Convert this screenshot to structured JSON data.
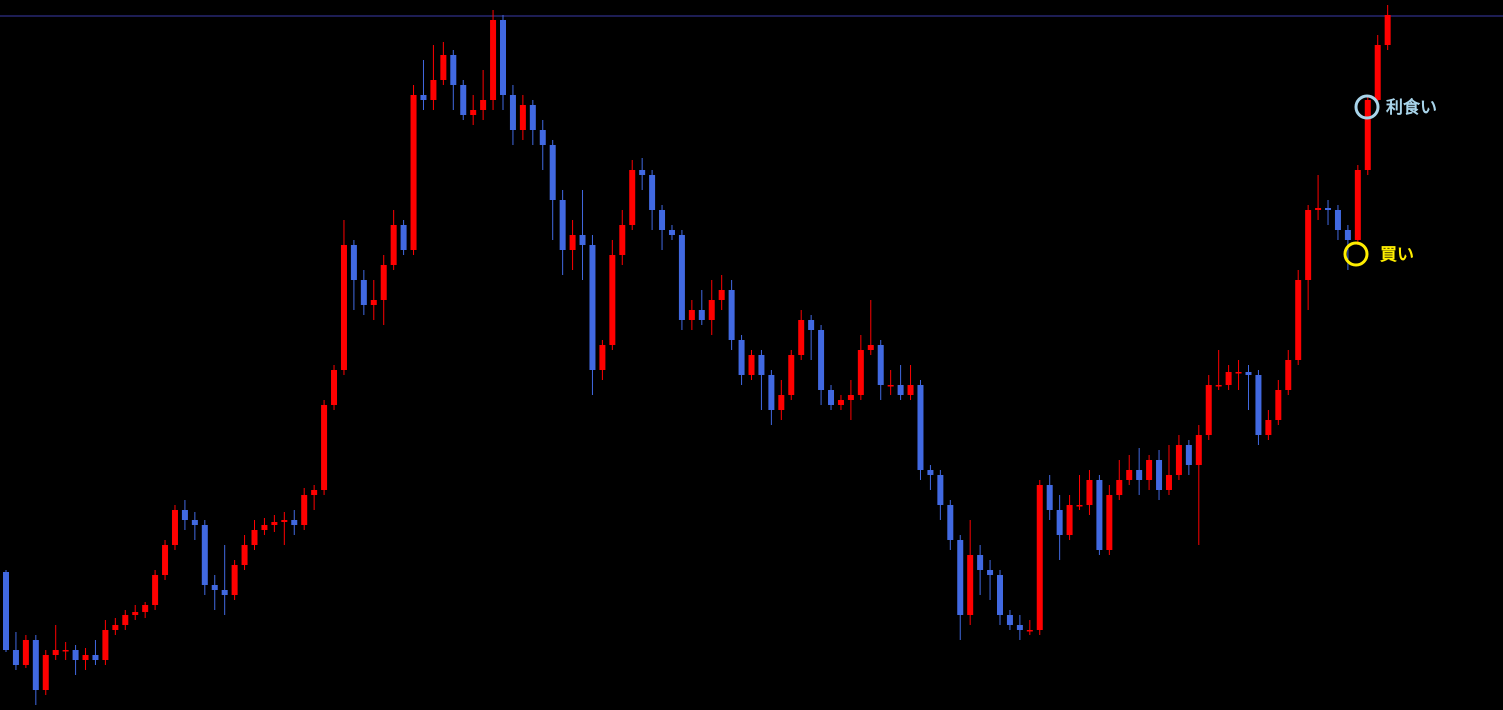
{
  "chart_data": {
    "type": "candlestick",
    "open": [
      138,
      60,
      45,
      70,
      20,
      55,
      60,
      60,
      50,
      55,
      50,
      80,
      85,
      95,
      98,
      105,
      135,
      165,
      200,
      190,
      185,
      125,
      120,
      115,
      145,
      165,
      180,
      185,
      188,
      190,
      185,
      215,
      220,
      305,
      340,
      465,
      430,
      405,
      410,
      445,
      485,
      460,
      615,
      610,
      630,
      655,
      625,
      595,
      600,
      610,
      690,
      615,
      580,
      605,
      580,
      565,
      510,
      460,
      475,
      465,
      340,
      365,
      455,
      485,
      540,
      535,
      500,
      480,
      475,
      390,
      400,
      390,
      410,
      420,
      370,
      335,
      355,
      335,
      300,
      315,
      355,
      390,
      380,
      320,
      305,
      310,
      315,
      360,
      365,
      325,
      325,
      315,
      325,
      240,
      235,
      205,
      170,
      95,
      155,
      140,
      135,
      95,
      85,
      80,
      80,
      225,
      200,
      175,
      205,
      205,
      230,
      160,
      215,
      230,
      240,
      230,
      250,
      220,
      235,
      265,
      245,
      275,
      325,
      325,
      338,
      338,
      335,
      275,
      290,
      320,
      350,
      430,
      500,
      502,
      500,
      480,
      470,
      540,
      610,
      665
    ],
    "high": [
      140,
      78,
      75,
      75,
      60,
      85,
      68,
      65,
      62,
      70,
      90,
      92,
      100,
      105,
      108,
      140,
      170,
      205,
      210,
      198,
      190,
      135,
      165,
      150,
      175,
      190,
      192,
      195,
      198,
      200,
      222,
      225,
      310,
      345,
      490,
      470,
      440,
      430,
      455,
      500,
      490,
      625,
      650,
      665,
      668,
      660,
      630,
      615,
      640,
      700,
      695,
      625,
      615,
      610,
      590,
      570,
      520,
      490,
      520,
      475,
      370,
      470,
      500,
      550,
      552,
      540,
      505,
      485,
      480,
      410,
      420,
      430,
      435,
      430,
      375,
      360,
      360,
      340,
      330,
      360,
      400,
      395,
      385,
      325,
      315,
      330,
      375,
      410,
      370,
      340,
      345,
      345,
      330,
      245,
      240,
      210,
      175,
      190,
      165,
      150,
      140,
      100,
      95,
      90,
      230,
      235,
      215,
      215,
      235,
      240,
      235,
      225,
      250,
      255,
      262,
      255,
      260,
      265,
      275,
      270,
      285,
      335,
      360,
      345,
      350,
      345,
      340,
      300,
      330,
      360,
      440,
      505,
      535,
      510,
      505,
      485,
      545,
      615,
      675,
      705
    ],
    "low": [
      58,
      40,
      42,
      5,
      15,
      50,
      50,
      35,
      40,
      45,
      45,
      75,
      80,
      90,
      92,
      100,
      130,
      160,
      180,
      170,
      115,
      100,
      95,
      110,
      140,
      160,
      175,
      178,
      165,
      175,
      180,
      200,
      215,
      300,
      335,
      400,
      395,
      390,
      385,
      440,
      455,
      455,
      600,
      600,
      625,
      600,
      590,
      585,
      590,
      600,
      600,
      565,
      570,
      565,
      540,
      470,
      435,
      440,
      430,
      315,
      330,
      360,
      445,
      480,
      520,
      480,
      460,
      470,
      380,
      380,
      385,
      375,
      400,
      360,
      325,
      330,
      300,
      285,
      290,
      310,
      350,
      350,
      305,
      300,
      300,
      290,
      310,
      355,
      310,
      315,
      310,
      310,
      230,
      220,
      190,
      160,
      70,
      85,
      115,
      110,
      85,
      80,
      70,
      75,
      75,
      190,
      150,
      170,
      200,
      195,
      155,
      155,
      210,
      225,
      215,
      220,
      210,
      215,
      230,
      235,
      165,
      270,
      320,
      320,
      320,
      300,
      265,
      270,
      285,
      315,
      345,
      400,
      490,
      485,
      470,
      440,
      465,
      535,
      605,
      660
    ],
    "close": [
      60,
      45,
      70,
      20,
      55,
      60,
      60,
      50,
      55,
      50,
      80,
      85,
      95,
      98,
      105,
      135,
      165,
      200,
      190,
      185,
      125,
      120,
      115,
      145,
      165,
      180,
      185,
      188,
      190,
      185,
      215,
      220,
      305,
      340,
      465,
      430,
      405,
      410,
      445,
      485,
      460,
      615,
      610,
      630,
      655,
      625,
      595,
      600,
      610,
      690,
      615,
      580,
      605,
      580,
      565,
      510,
      460,
      475,
      465,
      340,
      365,
      455,
      485,
      540,
      535,
      500,
      480,
      475,
      390,
      400,
      390,
      410,
      420,
      370,
      335,
      355,
      335,
      300,
      315,
      355,
      390,
      380,
      320,
      305,
      310,
      315,
      360,
      365,
      325,
      325,
      315,
      325,
      240,
      235,
      205,
      170,
      95,
      155,
      140,
      135,
      95,
      85,
      80,
      80,
      225,
      200,
      175,
      205,
      205,
      230,
      160,
      215,
      230,
      240,
      230,
      250,
      220,
      235,
      265,
      245,
      275,
      325,
      325,
      338,
      338,
      335,
      275,
      290,
      320,
      350,
      430,
      500,
      502,
      500,
      480,
      470,
      540,
      610,
      665,
      695
    ],
    "up_color": "#ff0000",
    "down_color": "#4169e1",
    "hline": 694,
    "hline_color": "#3a3aa8",
    "ylim": [
      0,
      710
    ],
    "annotations": [
      {
        "text": "利食い",
        "color": "#a8d4ea"
      },
      {
        "text": "買い",
        "color": "#ffee00"
      }
    ]
  }
}
